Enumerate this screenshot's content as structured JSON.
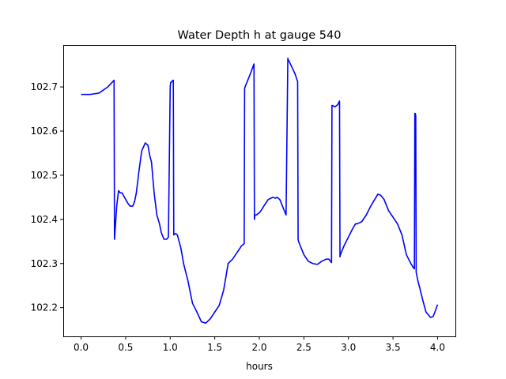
{
  "chart_data": {
    "type": "line",
    "title": "Water Depth h at gauge 540",
    "xlabel": "hours",
    "ylabel": "",
    "xlim": [
      -0.2,
      4.2
    ],
    "ylim": [
      102.135,
      102.795
    ],
    "grid": false,
    "legend": "none",
    "line_color": "#0000ff",
    "xticks": [
      0.0,
      0.5,
      1.0,
      1.5,
      2.0,
      2.5,
      3.0,
      3.5,
      4.0
    ],
    "xtick_labels": [
      "0.0",
      "0.5",
      "1.0",
      "1.5",
      "2.0",
      "2.5",
      "3.0",
      "3.5",
      "4.0"
    ],
    "yticks": [
      102.2,
      102.3,
      102.4,
      102.5,
      102.6,
      102.7
    ],
    "ytick_labels": [
      "102.2",
      "102.3",
      "102.4",
      "102.5",
      "102.6",
      "102.7"
    ],
    "series": [
      {
        "x": [
          0.0,
          0.1,
          0.2,
          0.3,
          0.37,
          0.375,
          0.38,
          0.4,
          0.42,
          0.44,
          0.46,
          0.5,
          0.53,
          0.55,
          0.58,
          0.6,
          0.62,
          0.65,
          0.68,
          0.72,
          0.75,
          0.77,
          0.79,
          0.82,
          0.85,
          0.88,
          0.9,
          0.93,
          0.96,
          0.98,
          1.0,
          1.005,
          1.01,
          1.03,
          1.035,
          1.04,
          1.06,
          1.08,
          1.1,
          1.12,
          1.15,
          1.2,
          1.25,
          1.3,
          1.35,
          1.4,
          1.45,
          1.5,
          1.55,
          1.6,
          1.65,
          1.7,
          1.75,
          1.8,
          1.83,
          1.835,
          1.84,
          1.9,
          1.94,
          1.945,
          1.95,
          1.97,
          1.98,
          2.0,
          2.02,
          2.05,
          2.1,
          2.15,
          2.18,
          2.2,
          2.23,
          2.25,
          2.28,
          2.3,
          2.32,
          2.325,
          2.33,
          2.4,
          2.43,
          2.435,
          2.44,
          2.47,
          2.5,
          2.55,
          2.6,
          2.65,
          2.7,
          2.75,
          2.78,
          2.8,
          2.81,
          2.815,
          2.82,
          2.85,
          2.88,
          2.9,
          2.905,
          2.91,
          2.95,
          3.0,
          3.05,
          3.08,
          3.1,
          3.15,
          3.2,
          3.25,
          3.3,
          3.33,
          3.36,
          3.4,
          3.45,
          3.5,
          3.55,
          3.6,
          3.65,
          3.7,
          3.73,
          3.74,
          3.745,
          3.75,
          3.755,
          3.76,
          3.765,
          3.78,
          3.8,
          3.83,
          3.85,
          3.87,
          3.9,
          3.92,
          3.95,
          3.97,
          4.0
        ],
        "y": [
          102.683,
          102.683,
          102.686,
          102.7,
          102.715,
          102.355,
          102.37,
          102.43,
          102.465,
          102.46,
          102.46,
          102.445,
          102.435,
          102.43,
          102.43,
          102.44,
          102.46,
          102.51,
          102.555,
          102.573,
          102.568,
          102.545,
          102.53,
          102.46,
          102.41,
          102.39,
          102.37,
          102.355,
          102.355,
          102.36,
          102.7,
          102.71,
          102.71,
          102.715,
          102.715,
          102.365,
          102.368,
          102.365,
          102.35,
          102.335,
          102.3,
          102.26,
          102.21,
          102.19,
          102.168,
          102.165,
          102.175,
          102.19,
          102.205,
          102.24,
          102.3,
          102.31,
          102.325,
          102.34,
          102.345,
          102.696,
          102.7,
          102.73,
          102.752,
          102.4,
          102.41,
          102.41,
          102.412,
          102.415,
          102.42,
          102.43,
          102.445,
          102.45,
          102.448,
          102.45,
          102.445,
          102.435,
          102.42,
          102.41,
          102.765,
          102.76,
          102.76,
          102.73,
          102.712,
          102.355,
          102.35,
          102.335,
          102.32,
          102.305,
          102.3,
          102.298,
          102.305,
          102.31,
          102.31,
          102.305,
          102.302,
          102.658,
          102.658,
          102.655,
          102.66,
          102.668,
          102.315,
          102.32,
          102.34,
          102.36,
          102.38,
          102.39,
          102.39,
          102.395,
          102.41,
          102.43,
          102.447,
          102.457,
          102.455,
          102.445,
          102.42,
          102.405,
          102.39,
          102.365,
          102.32,
          102.3,
          102.29,
          102.288,
          102.64,
          102.64,
          102.635,
          102.28,
          102.275,
          102.26,
          102.245,
          102.22,
          102.205,
          102.19,
          102.183,
          102.178,
          102.18,
          102.19,
          102.207
        ]
      }
    ]
  }
}
